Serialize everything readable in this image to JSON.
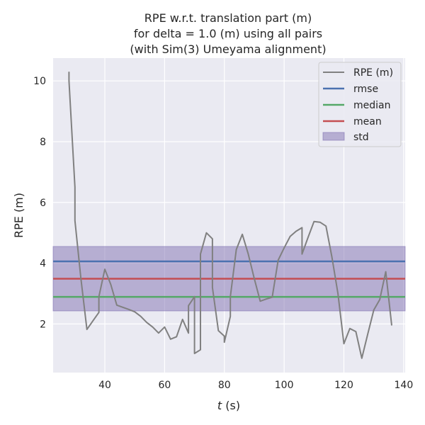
{
  "chart_data": {
    "type": "line",
    "title_lines": [
      "RPE w.r.t. translation part (m)",
      "for delta = 1.0 (m) using all pairs",
      "(with Sim(3) Umeyama alignment)"
    ],
    "xlabel_var": "t",
    "xlabel_unit": " (s)",
    "ylabel": "RPE (m)",
    "xlim": [
      22.7,
      140.5
    ],
    "ylim": [
      0.4,
      10.75
    ],
    "xticks": [
      40,
      60,
      80,
      100,
      120,
      140
    ],
    "yticks": [
      2,
      4,
      6,
      8,
      10
    ],
    "grid": true,
    "legend_position": "top-right",
    "series": [
      {
        "name": "RPE (m)",
        "color": "#808080",
        "x": [
          28,
          28,
          30,
          30,
          32,
          34,
          36,
          38,
          38,
          40,
          42,
          44,
          46,
          48,
          50,
          52,
          54,
          56,
          58,
          60,
          62,
          64,
          66,
          68,
          68,
          70,
          70,
          72,
          72,
          74,
          76,
          76,
          78,
          80,
          80,
          82,
          82,
          84,
          86,
          88,
          90,
          92,
          94,
          96,
          98,
          100,
          102,
          104,
          106,
          106,
          108,
          110,
          112,
          114,
          116,
          118,
          120,
          122,
          124,
          126,
          128,
          130,
          132,
          134,
          136
        ],
        "y": [
          10.3,
          10.0,
          6.5,
          5.4,
          3.5,
          1.82,
          2.1,
          2.38,
          2.9,
          3.8,
          3.3,
          2.62,
          2.55,
          2.48,
          2.4,
          2.25,
          2.05,
          1.9,
          1.7,
          1.9,
          1.5,
          1.58,
          2.15,
          1.7,
          2.6,
          2.9,
          1.03,
          1.15,
          4.3,
          5.0,
          4.8,
          3.2,
          1.78,
          1.6,
          1.4,
          2.25,
          2.9,
          4.45,
          4.95,
          4.3,
          3.5,
          2.75,
          2.82,
          2.88,
          4.1,
          4.5,
          4.88,
          5.05,
          5.17,
          4.3,
          4.85,
          5.37,
          5.35,
          5.22,
          4.2,
          3.0,
          1.35,
          1.85,
          1.75,
          0.87,
          1.68,
          2.46,
          2.8,
          3.72,
          1.95
        ]
      }
    ],
    "reference_lines": [
      {
        "name": "rmse",
        "value": 4.06,
        "color": "#4c72b0"
      },
      {
        "name": "median",
        "value": 2.89,
        "color": "#55a868"
      },
      {
        "name": "mean",
        "value": 3.49,
        "color": "#c44e52"
      }
    ],
    "std_band": {
      "name": "std",
      "low": 2.43,
      "high": 4.55,
      "color": "#8172b2"
    }
  }
}
